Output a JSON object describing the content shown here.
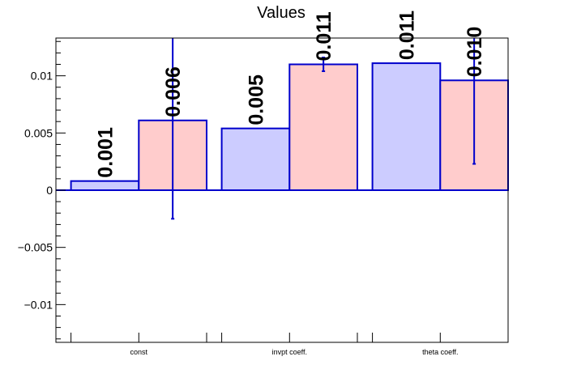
{
  "chart_data": {
    "type": "bar",
    "title": "Values",
    "categories": [
      "const",
      "invpt coeff.",
      "theta coeff."
    ],
    "ylim": [
      -0.0133,
      0.0133
    ],
    "yticks": [
      -0.01,
      -0.005,
      0,
      0.005,
      0.01
    ],
    "ytick_labels": [
      "−0.01",
      "−0.005",
      "0",
      "0.005",
      "0.01"
    ],
    "grid": false,
    "series": [
      {
        "fill": "#ccccff",
        "edge": "#0000cc",
        "values": [
          0.0008,
          0.0054,
          0.0111
        ],
        "labels": [
          "0.001",
          "0.005",
          "0.011"
        ],
        "errors": [
          null,
          null,
          null
        ]
      },
      {
        "fill": "#ffcccc",
        "edge": "#0000cc",
        "values": [
          0.0061,
          0.011,
          0.0096
        ],
        "labels": [
          "0.006",
          "0.011",
          "0.010"
        ],
        "errors": [
          0.0086,
          0.0006,
          0.0073
        ]
      }
    ]
  }
}
